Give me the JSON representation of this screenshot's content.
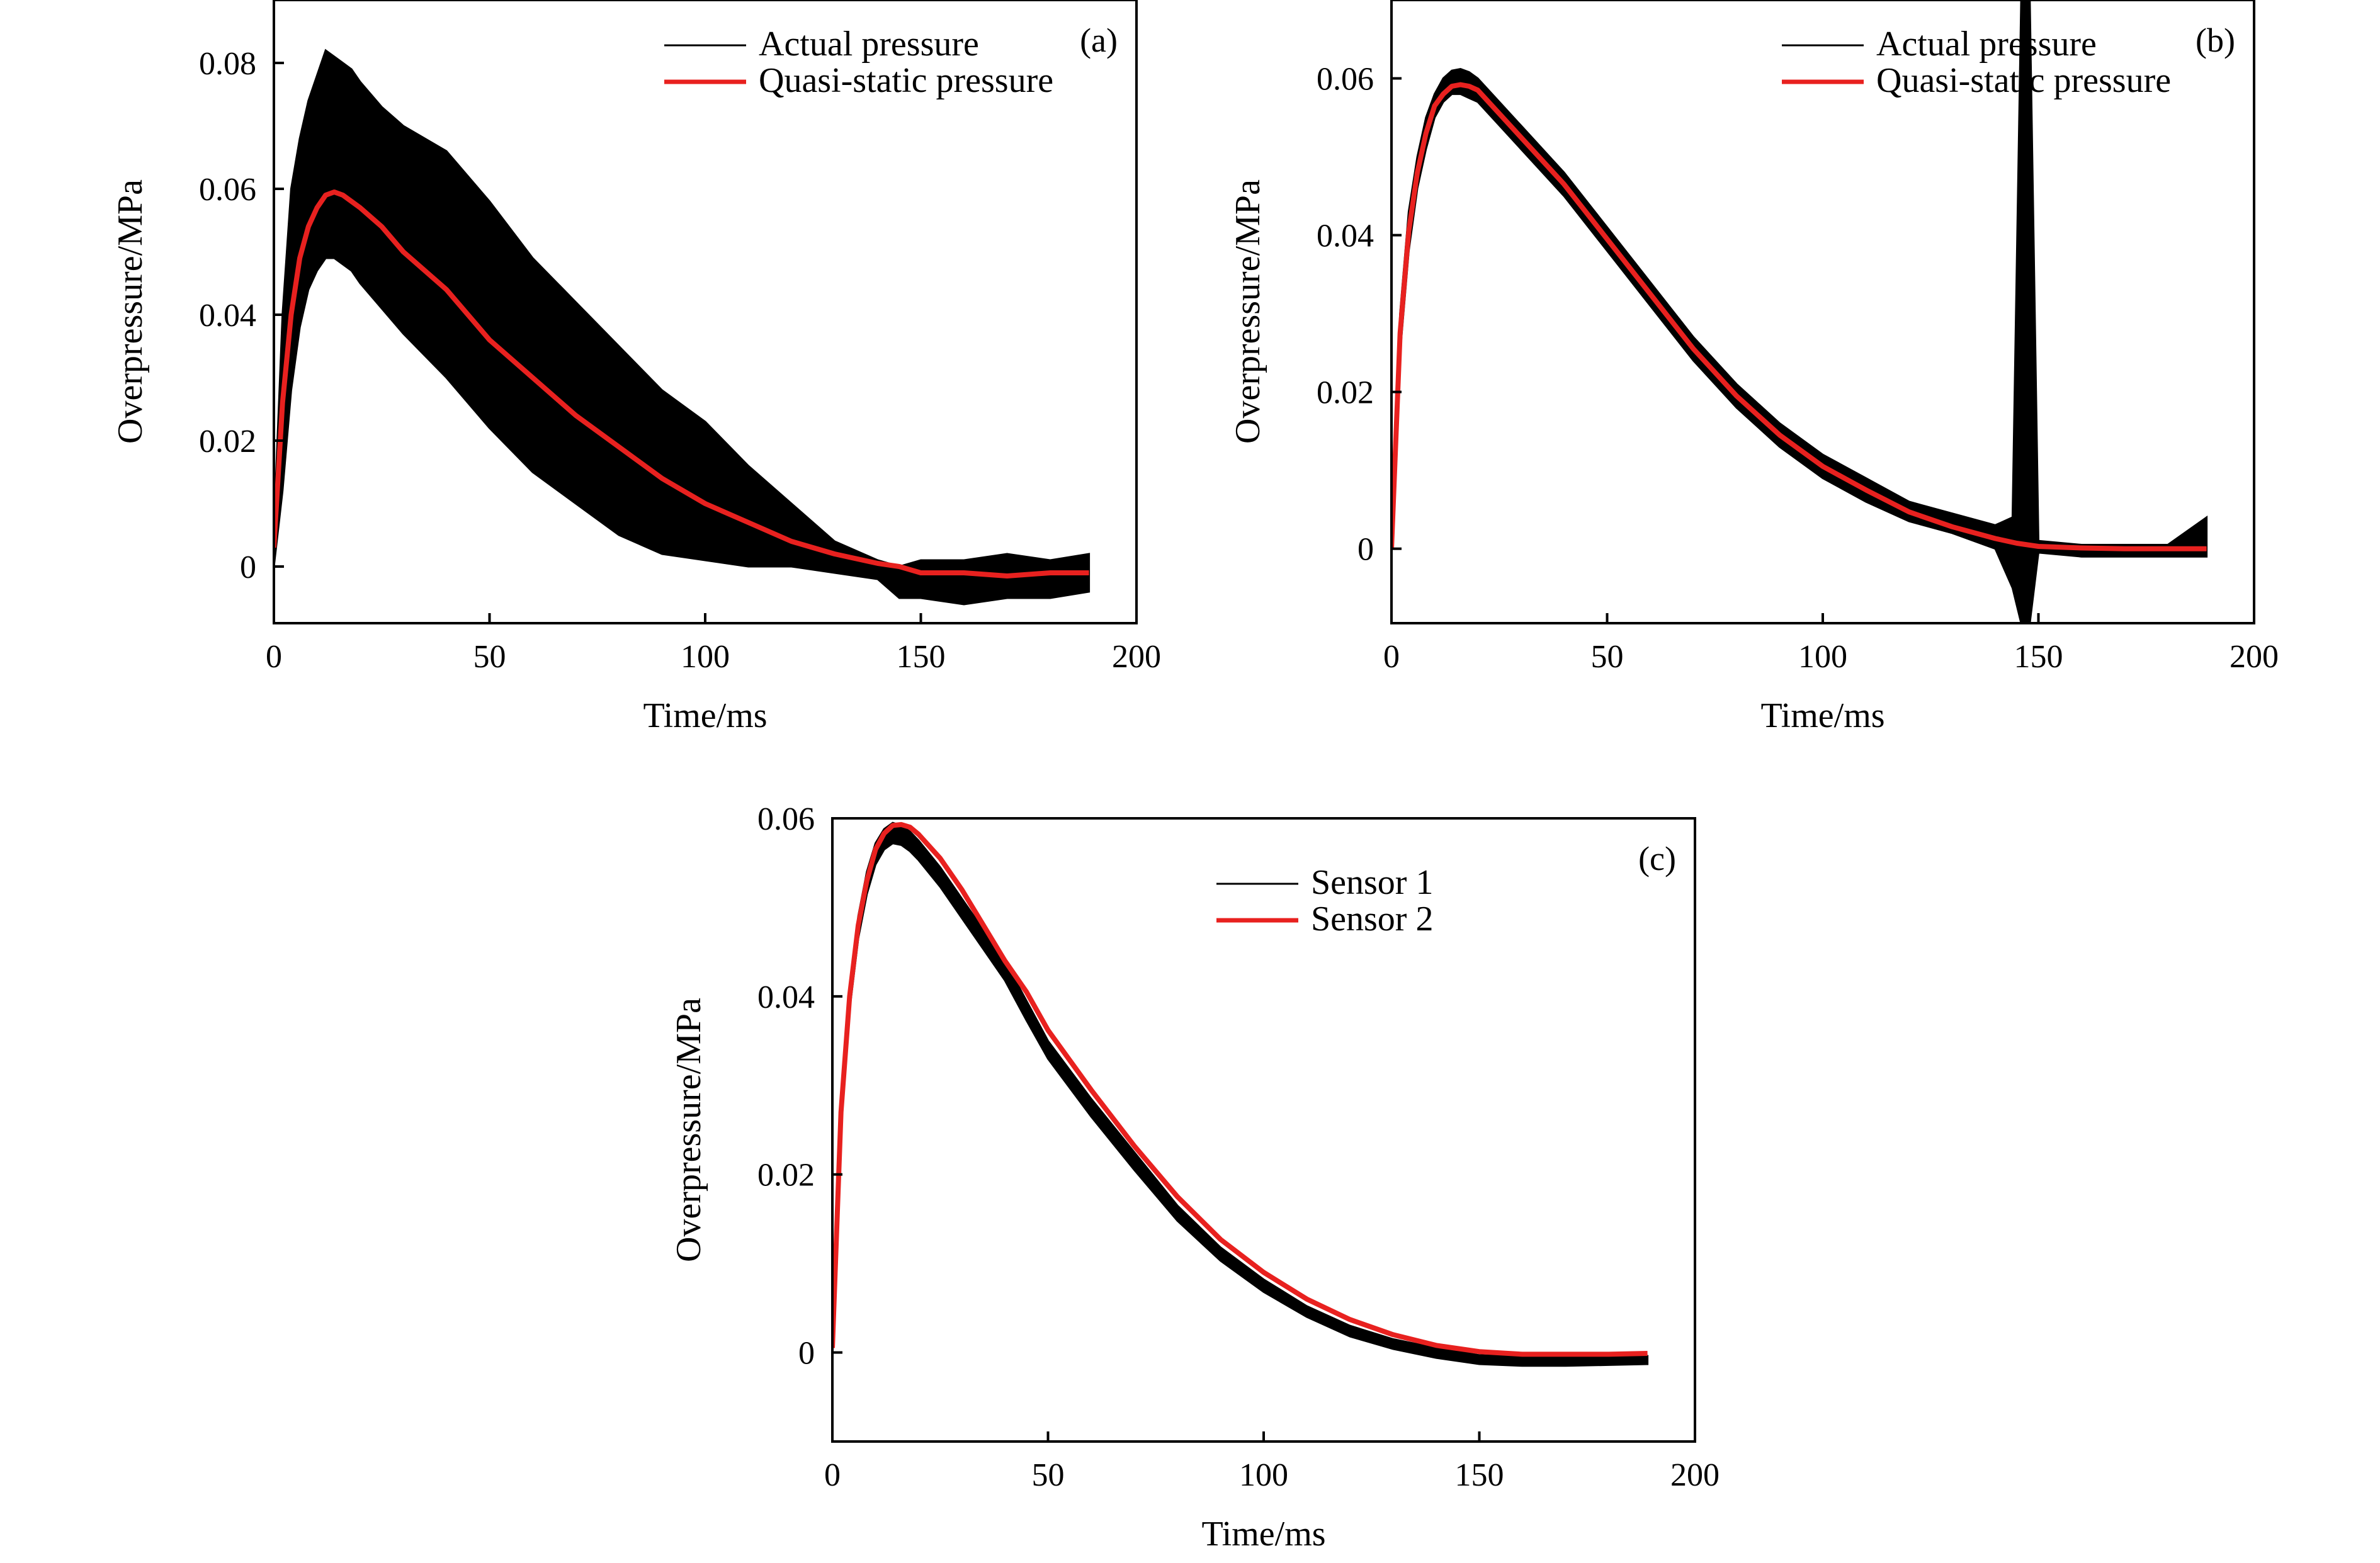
{
  "colors": {
    "actual": "#000000",
    "quasi": "#e8211f",
    "sensor1": "#000000",
    "sensor2": "#e8211f",
    "frame": "#000000"
  },
  "chart_data": [
    {
      "type": "line",
      "panel": "(a)",
      "xlabel": "Time/ms",
      "ylabel": "Overpressure/MPa",
      "xlim": [
        0,
        200
      ],
      "ylim": [
        -0.009,
        0.09
      ],
      "xticks": [
        0,
        50,
        100,
        150,
        200
      ],
      "xtick_labels": [
        "0",
        "50",
        "100",
        "150",
        "200"
      ],
      "yticks": [
        0,
        0.02,
        0.04,
        0.06,
        0.08
      ],
      "ytick_labels": [
        "0",
        "0.02",
        "0.04",
        "0.06",
        "0.08"
      ],
      "legend_position": "top-right",
      "series": [
        {
          "name": "Actual pressure",
          "style": "band",
          "x": [
            0,
            2,
            4,
            6,
            8,
            10,
            12,
            14,
            16,
            18,
            20,
            25,
            30,
            40,
            50,
            60,
            70,
            80,
            90,
            100,
            110,
            120,
            130,
            140,
            145,
            150,
            160,
            170,
            180,
            189
          ],
          "upper": [
            0.006,
            0.04,
            0.06,
            0.068,
            0.074,
            0.078,
            0.082,
            0.081,
            0.08,
            0.079,
            0.077,
            0.073,
            0.07,
            0.066,
            0.058,
            0.049,
            0.042,
            0.035,
            0.028,
            0.023,
            0.016,
            0.01,
            0.004,
            0.001,
            0.0,
            0.001,
            0.001,
            0.002,
            0.001,
            0.002
          ],
          "lower": [
            0.0,
            0.012,
            0.028,
            0.038,
            0.044,
            0.047,
            0.049,
            0.049,
            0.048,
            0.047,
            0.045,
            0.041,
            0.037,
            0.03,
            0.022,
            0.015,
            0.01,
            0.005,
            0.002,
            0.001,
            0.0,
            0.0,
            -0.001,
            -0.002,
            -0.005,
            -0.005,
            -0.006,
            -0.005,
            -0.005,
            -0.004
          ]
        },
        {
          "name": "Quasi-static pressure",
          "style": "line",
          "x": [
            0,
            2,
            4,
            6,
            8,
            10,
            12,
            14,
            16,
            18,
            20,
            25,
            30,
            40,
            50,
            60,
            70,
            80,
            90,
            100,
            110,
            120,
            130,
            140,
            145,
            150,
            160,
            170,
            180,
            189
          ],
          "y": [
            0.003,
            0.026,
            0.04,
            0.049,
            0.054,
            0.057,
            0.059,
            0.0595,
            0.059,
            0.058,
            0.057,
            0.054,
            0.05,
            0.044,
            0.036,
            0.03,
            0.024,
            0.019,
            0.014,
            0.01,
            0.007,
            0.004,
            0.002,
            0.0005,
            0.0,
            -0.001,
            -0.001,
            -0.0015,
            -0.001,
            -0.001
          ]
        }
      ]
    },
    {
      "type": "line",
      "panel": "(b)",
      "xlabel": "Time/ms",
      "ylabel": "Overpressure/MPa",
      "xlim": [
        0,
        200
      ],
      "ylim": [
        -0.0095,
        0.07
      ],
      "xticks": [
        0,
        50,
        100,
        150,
        200
      ],
      "xtick_labels": [
        "0",
        "50",
        "100",
        "150",
        "200"
      ],
      "yticks": [
        0,
        0.02,
        0.04,
        0.06
      ],
      "ytick_labels": [
        "0",
        "0.02",
        "0.04",
        "0.06"
      ],
      "legend_position": "top-right",
      "series": [
        {
          "name": "Actual pressure",
          "style": "band",
          "x": [
            0,
            2,
            4,
            6,
            8,
            10,
            12,
            14,
            16,
            18,
            20,
            25,
            30,
            40,
            50,
            60,
            70,
            80,
            90,
            100,
            110,
            120,
            130,
            140,
            144,
            146,
            148,
            150,
            160,
            170,
            180,
            189
          ],
          "upper": [
            0.001,
            0.03,
            0.043,
            0.05,
            0.055,
            0.058,
            0.06,
            0.061,
            0.0612,
            0.0608,
            0.06,
            0.057,
            0.054,
            0.048,
            0.041,
            0.034,
            0.027,
            0.021,
            0.016,
            0.012,
            0.009,
            0.006,
            0.0045,
            0.003,
            0.004,
            0.07,
            0.07,
            0.001,
            0.0005,
            0.0005,
            0.0005,
            0.004
          ],
          "lower": [
            -0.001,
            0.025,
            0.038,
            0.046,
            0.051,
            0.055,
            0.057,
            0.058,
            0.058,
            0.0575,
            0.057,
            0.054,
            0.051,
            0.045,
            0.038,
            0.031,
            0.024,
            0.018,
            0.013,
            0.009,
            0.006,
            0.0035,
            0.002,
            0.0,
            -0.005,
            -0.0095,
            -0.0095,
            -0.0005,
            -0.001,
            -0.001,
            -0.001,
            -0.001
          ]
        },
        {
          "name": "Quasi-static pressure",
          "style": "line",
          "x": [
            0,
            2,
            4,
            6,
            8,
            10,
            12,
            14,
            16,
            18,
            20,
            25,
            30,
            40,
            50,
            60,
            70,
            80,
            90,
            100,
            110,
            120,
            130,
            140,
            145,
            150,
            160,
            170,
            180,
            189
          ],
          "y": [
            0.0,
            0.0275,
            0.0405,
            0.048,
            0.053,
            0.0565,
            0.058,
            0.059,
            0.0592,
            0.059,
            0.0585,
            0.0555,
            0.0525,
            0.0465,
            0.0395,
            0.0325,
            0.0255,
            0.0195,
            0.0145,
            0.0105,
            0.0075,
            0.0047,
            0.0028,
            0.0013,
            0.0007,
            0.0003,
            0.0001,
            0.0,
            0.0,
            0.0
          ]
        }
      ]
    },
    {
      "type": "line",
      "panel": "(c)",
      "xlabel": "Time/ms",
      "ylabel": "Overpressure/MPa",
      "xlim": [
        0,
        200
      ],
      "ylim": [
        -0.01,
        0.06
      ],
      "xticks": [
        0,
        50,
        100,
        150,
        200
      ],
      "xtick_labels": [
        "0",
        "50",
        "100",
        "150",
        "200"
      ],
      "yticks": [
        0,
        0.02,
        0.04,
        0.06
      ],
      "ytick_labels": [
        "0",
        "0.02",
        "0.04",
        "0.06"
      ],
      "legend_position": "top-right",
      "series": [
        {
          "name": "Sensor 1",
          "style": "band",
          "x": [
            0,
            2,
            4,
            6,
            8,
            10,
            12,
            14,
            16,
            18,
            20,
            25,
            30,
            35,
            40,
            45,
            50,
            60,
            70,
            80,
            90,
            100,
            110,
            120,
            130,
            140,
            150,
            160,
            170,
            180,
            189
          ],
          "upper": [
            0.0015,
            0.028,
            0.041,
            0.049,
            0.054,
            0.0572,
            0.0588,
            0.0595,
            0.0592,
            0.0585,
            0.0575,
            0.0545,
            0.051,
            0.0475,
            0.044,
            0.0395,
            0.035,
            0.0285,
            0.0225,
            0.0165,
            0.0118,
            0.0082,
            0.0052,
            0.003,
            0.0015,
            0.0005,
            -0.0003,
            -0.0005,
            -0.0005,
            -0.0005,
            -0.0004
          ],
          "lower": [
            -0.0005,
            0.0255,
            0.0385,
            0.0465,
            0.0515,
            0.0548,
            0.0565,
            0.0572,
            0.057,
            0.0563,
            0.0553,
            0.0523,
            0.0488,
            0.0453,
            0.0418,
            0.0373,
            0.033,
            0.0265,
            0.0205,
            0.0148,
            0.0103,
            0.0068,
            0.004,
            0.0018,
            0.0004,
            -0.0006,
            -0.0013,
            -0.0015,
            -0.0015,
            -0.0014,
            -0.0013
          ]
        },
        {
          "name": "Sensor 2",
          "style": "line",
          "x": [
            0,
            2,
            4,
            6,
            8,
            10,
            12,
            14,
            16,
            18,
            20,
            25,
            30,
            35,
            40,
            45,
            50,
            60,
            70,
            80,
            90,
            100,
            110,
            120,
            130,
            140,
            150,
            160,
            170,
            180,
            189
          ],
          "y": [
            0.0005,
            0.027,
            0.04,
            0.048,
            0.053,
            0.0565,
            0.0583,
            0.0592,
            0.0593,
            0.059,
            0.0582,
            0.0555,
            0.052,
            0.048,
            0.044,
            0.0405,
            0.0362,
            0.0295,
            0.0232,
            0.0175,
            0.0127,
            0.009,
            0.006,
            0.0037,
            0.002,
            0.0008,
            0.0001,
            -0.0002,
            -0.0002,
            -0.0002,
            -0.0001
          ]
        }
      ]
    }
  ]
}
